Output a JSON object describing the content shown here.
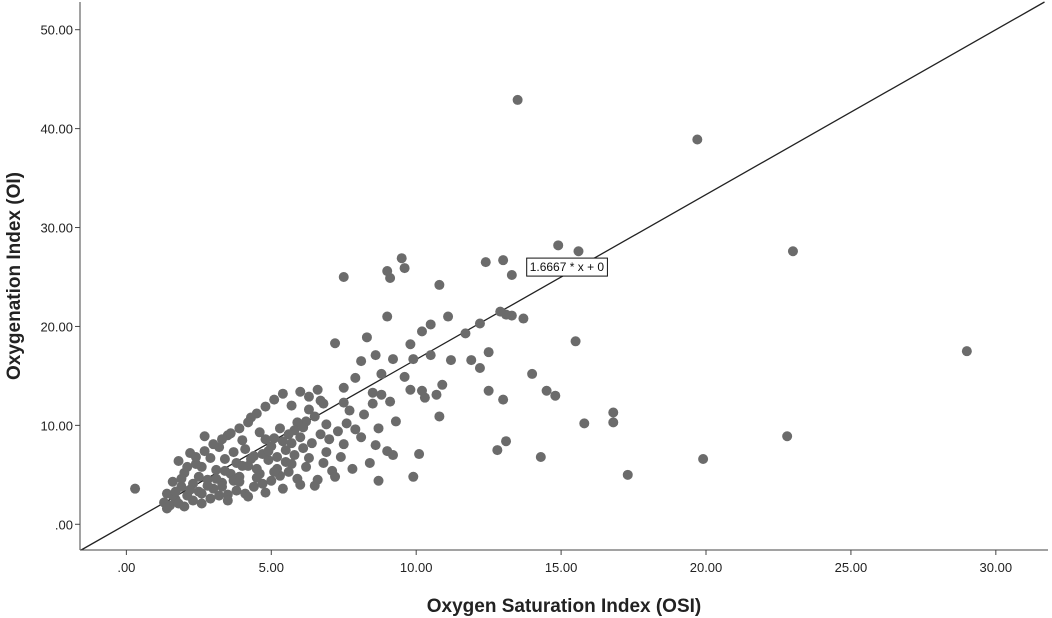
{
  "chart_data": {
    "type": "scatter",
    "title": "",
    "xlabel": "Oxygen Saturation Index (OSI)",
    "ylabel": "Oxygenation Index (OI)",
    "xlim": [
      -1.6,
      31.8
    ],
    "ylim": [
      -2.6,
      52.8
    ],
    "x_ticks": [
      0,
      5,
      10,
      15,
      20,
      25,
      30
    ],
    "x_tick_labels": [
      ".00",
      "5.00",
      "10.00",
      "15.00",
      "20.00",
      "25.00",
      "30.00"
    ],
    "y_ticks": [
      0,
      10,
      20,
      30,
      40,
      50
    ],
    "y_tick_labels": [
      ".00",
      "10.00",
      "20.00",
      "30.00",
      "40.00",
      "50.00"
    ],
    "grid": false,
    "legend": false,
    "point_color": "#6b6b6b",
    "fit_line": {
      "slope": 1.6667,
      "intercept": 0,
      "label": "1.6667 * x + 0",
      "label_at": {
        "x": 15.2,
        "y": 26
      }
    },
    "series": [
      {
        "points": [
          [
            0.3,
            3.6
          ],
          [
            13.5,
            42.9
          ],
          [
            19.7,
            38.9
          ],
          [
            23,
            27.6
          ],
          [
            29,
            17.5
          ],
          [
            22.8,
            8.9
          ],
          [
            19.9,
            6.6
          ],
          [
            17.3,
            5
          ],
          [
            16.8,
            11.3
          ],
          [
            16.8,
            10.3
          ],
          [
            15.8,
            10.2
          ],
          [
            15.5,
            18.5
          ],
          [
            15.6,
            27.6
          ],
          [
            14.9,
            28.2
          ],
          [
            14.3,
            6.8
          ],
          [
            14.5,
            13.5
          ],
          [
            14.8,
            13
          ],
          [
            14,
            15.2
          ],
          [
            13.7,
            20.8
          ],
          [
            13.3,
            21.1
          ],
          [
            13.1,
            21.2
          ],
          [
            13.3,
            25.2
          ],
          [
            13,
            26.7
          ],
          [
            12.9,
            21.5
          ],
          [
            12.4,
            26.5
          ],
          [
            12.2,
            20.3
          ],
          [
            12.5,
            17.4
          ],
          [
            12.8,
            7.5
          ],
          [
            13.1,
            8.4
          ],
          [
            13,
            12.6
          ],
          [
            12.5,
            13.5
          ],
          [
            12.2,
            15.8
          ],
          [
            11.9,
            16.6
          ],
          [
            11.7,
            19.3
          ],
          [
            11.2,
            16.6
          ],
          [
            11.1,
            21
          ],
          [
            10.9,
            14.1
          ],
          [
            10.8,
            10.9
          ],
          [
            10.7,
            13.1
          ],
          [
            10.8,
            24.2
          ],
          [
            10.5,
            20.2
          ],
          [
            10.5,
            17.1
          ],
          [
            10.3,
            12.8
          ],
          [
            10.2,
            13.5
          ],
          [
            10.2,
            19.5
          ],
          [
            10.1,
            7.1
          ],
          [
            9.9,
            4.8
          ],
          [
            9.8,
            13.6
          ],
          [
            9.9,
            16.7
          ],
          [
            9.8,
            18.2
          ],
          [
            9.6,
            14.9
          ],
          [
            9.6,
            25.9
          ],
          [
            9.5,
            26.9
          ],
          [
            9.2,
            16.7
          ],
          [
            9.1,
            24.9
          ],
          [
            9,
            21
          ],
          [
            9,
            25.6
          ],
          [
            9.2,
            7
          ],
          [
            8.7,
            4.4
          ],
          [
            8.6,
            8
          ],
          [
            8.8,
            15.2
          ],
          [
            8.6,
            17.1
          ],
          [
            8.5,
            13.3
          ],
          [
            8.3,
            18.9
          ],
          [
            8.1,
            16.5
          ],
          [
            7.9,
            14.8
          ],
          [
            7.7,
            11.5
          ],
          [
            7.5,
            12.3
          ],
          [
            7.5,
            13.8
          ],
          [
            7.5,
            25
          ],
          [
            7.2,
            18.3
          ],
          [
            6.9,
            10.1
          ],
          [
            6.8,
            12.2
          ],
          [
            6.7,
            12.5
          ],
          [
            6.5,
            10.9
          ],
          [
            6.3,
            11.6
          ],
          [
            6.2,
            10.4
          ],
          [
            6.1,
            9.8
          ],
          [
            6,
            8.8
          ],
          [
            5.9,
            10.3
          ],
          [
            5.8,
            9.5
          ],
          [
            5.7,
            8.2
          ],
          [
            5.6,
            9.1
          ],
          [
            5.5,
            7.5
          ],
          [
            5.4,
            8.4
          ],
          [
            5.3,
            9.7
          ],
          [
            5.2,
            6.8
          ],
          [
            5.1,
            8.7
          ],
          [
            5,
            7.9
          ],
          [
            4.9,
            6.5
          ],
          [
            4.8,
            8.6
          ],
          [
            4.7,
            7.1
          ],
          [
            4.6,
            9.3
          ],
          [
            4.5,
            5.6
          ],
          [
            4.4,
            6.9
          ],
          [
            4.3,
            10.8
          ],
          [
            4.2,
            5.9
          ],
          [
            4.1,
            7.6
          ],
          [
            4,
            8.5
          ],
          [
            3.9,
            4.8
          ],
          [
            3.8,
            6.2
          ],
          [
            3.7,
            7.3
          ],
          [
            3.6,
            5.1
          ],
          [
            3.5,
            9
          ],
          [
            3.4,
            6.6
          ],
          [
            3.3,
            4.2
          ],
          [
            3.2,
            7.8
          ],
          [
            3.1,
            5.5
          ],
          [
            3,
            3.6
          ],
          [
            2.9,
            6.7
          ],
          [
            2.8,
            4.5
          ],
          [
            2.7,
            8.9
          ],
          [
            2.6,
            5.8
          ],
          [
            2.5,
            3.3
          ],
          [
            2.4,
            6.1
          ],
          [
            2.3,
            4.1
          ],
          [
            2.2,
            7.2
          ],
          [
            2.1,
            2.9
          ],
          [
            2,
            5.2
          ],
          [
            1.9,
            3.8
          ],
          [
            1.8,
            6.4
          ],
          [
            1.7,
            2.5
          ],
          [
            1.6,
            4.3
          ],
          [
            1.5,
            1.9
          ],
          [
            1.4,
            3.1
          ],
          [
            1.3,
            2.2
          ],
          [
            1.4,
            1.6
          ],
          [
            1.6,
            2.9
          ],
          [
            1.8,
            2.1
          ],
          [
            2,
            1.8
          ],
          [
            2.3,
            2.4
          ],
          [
            2.6,
            2.1
          ],
          [
            2.9,
            2.6
          ],
          [
            3.2,
            2.9
          ],
          [
            3.5,
            3
          ],
          [
            3.8,
            3.4
          ],
          [
            4.1,
            3.1
          ],
          [
            4.4,
            3.8
          ],
          [
            4.7,
            4.1
          ],
          [
            5,
            4.4
          ],
          [
            5.3,
            4.9
          ],
          [
            5.6,
            5.3
          ],
          [
            5.9,
            4.6
          ],
          [
            6.2,
            5.8
          ],
          [
            6.5,
            3.9
          ],
          [
            6.8,
            6.2
          ],
          [
            7.1,
            5.4
          ],
          [
            7.4,
            6.8
          ],
          [
            2.2,
            3.5
          ],
          [
            2.5,
            4.8
          ],
          [
            2.8,
            3.9
          ],
          [
            3.1,
            4.6
          ],
          [
            3.4,
            5.4
          ],
          [
            3.7,
            4.4
          ],
          [
            4,
            5.9
          ],
          [
            4.3,
            6.6
          ],
          [
            4.6,
            5.1
          ],
          [
            4.9,
            7.4
          ],
          [
            5.2,
            5.6
          ],
          [
            5.5,
            6.3
          ],
          [
            5.8,
            7
          ],
          [
            6.1,
            7.7
          ],
          [
            6.4,
            8.2
          ],
          [
            6.7,
            9.1
          ],
          [
            7,
            8.6
          ],
          [
            7.3,
            9.4
          ],
          [
            7.6,
            10.2
          ],
          [
            7.9,
            9.6
          ],
          [
            8.2,
            11.1
          ],
          [
            8.5,
            12.2
          ],
          [
            8.8,
            13.1
          ],
          [
            9.1,
            12.4
          ],
          [
            1.7,
            3.3
          ],
          [
            1.9,
            4.6
          ],
          [
            2.1,
            5.8
          ],
          [
            2.4,
            6.8
          ],
          [
            2.7,
            7.4
          ],
          [
            3,
            8.1
          ],
          [
            3.3,
            8.6
          ],
          [
            3.6,
            9.2
          ],
          [
            3.9,
            9.7
          ],
          [
            4.2,
            10.3
          ],
          [
            4.5,
            11.2
          ],
          [
            4.8,
            11.9
          ],
          [
            5.1,
            12.6
          ],
          [
            5.4,
            13.2
          ],
          [
            5.7,
            12
          ],
          [
            6,
            13.4
          ],
          [
            6.3,
            12.9
          ],
          [
            6.6,
            13.6
          ],
          [
            3.5,
            2.4
          ],
          [
            4.2,
            2.8
          ],
          [
            4.8,
            3.2
          ],
          [
            5.4,
            3.6
          ],
          [
            6,
            4
          ],
          [
            6.6,
            4.5
          ],
          [
            7.2,
            4.8
          ],
          [
            7.8,
            5.6
          ],
          [
            8.4,
            6.2
          ],
          [
            9,
            7.4
          ],
          [
            2.6,
            3.1
          ],
          [
            3.3,
            3.8
          ],
          [
            3.9,
            4.3
          ],
          [
            4.5,
            4.7
          ],
          [
            5.1,
            5.3
          ],
          [
            5.7,
            6.1
          ],
          [
            6.3,
            6.7
          ],
          [
            6.9,
            7.3
          ],
          [
            7.5,
            8.1
          ],
          [
            8.1,
            8.8
          ],
          [
            8.7,
            9.7
          ],
          [
            9.3,
            10.4
          ]
        ]
      }
    ]
  }
}
